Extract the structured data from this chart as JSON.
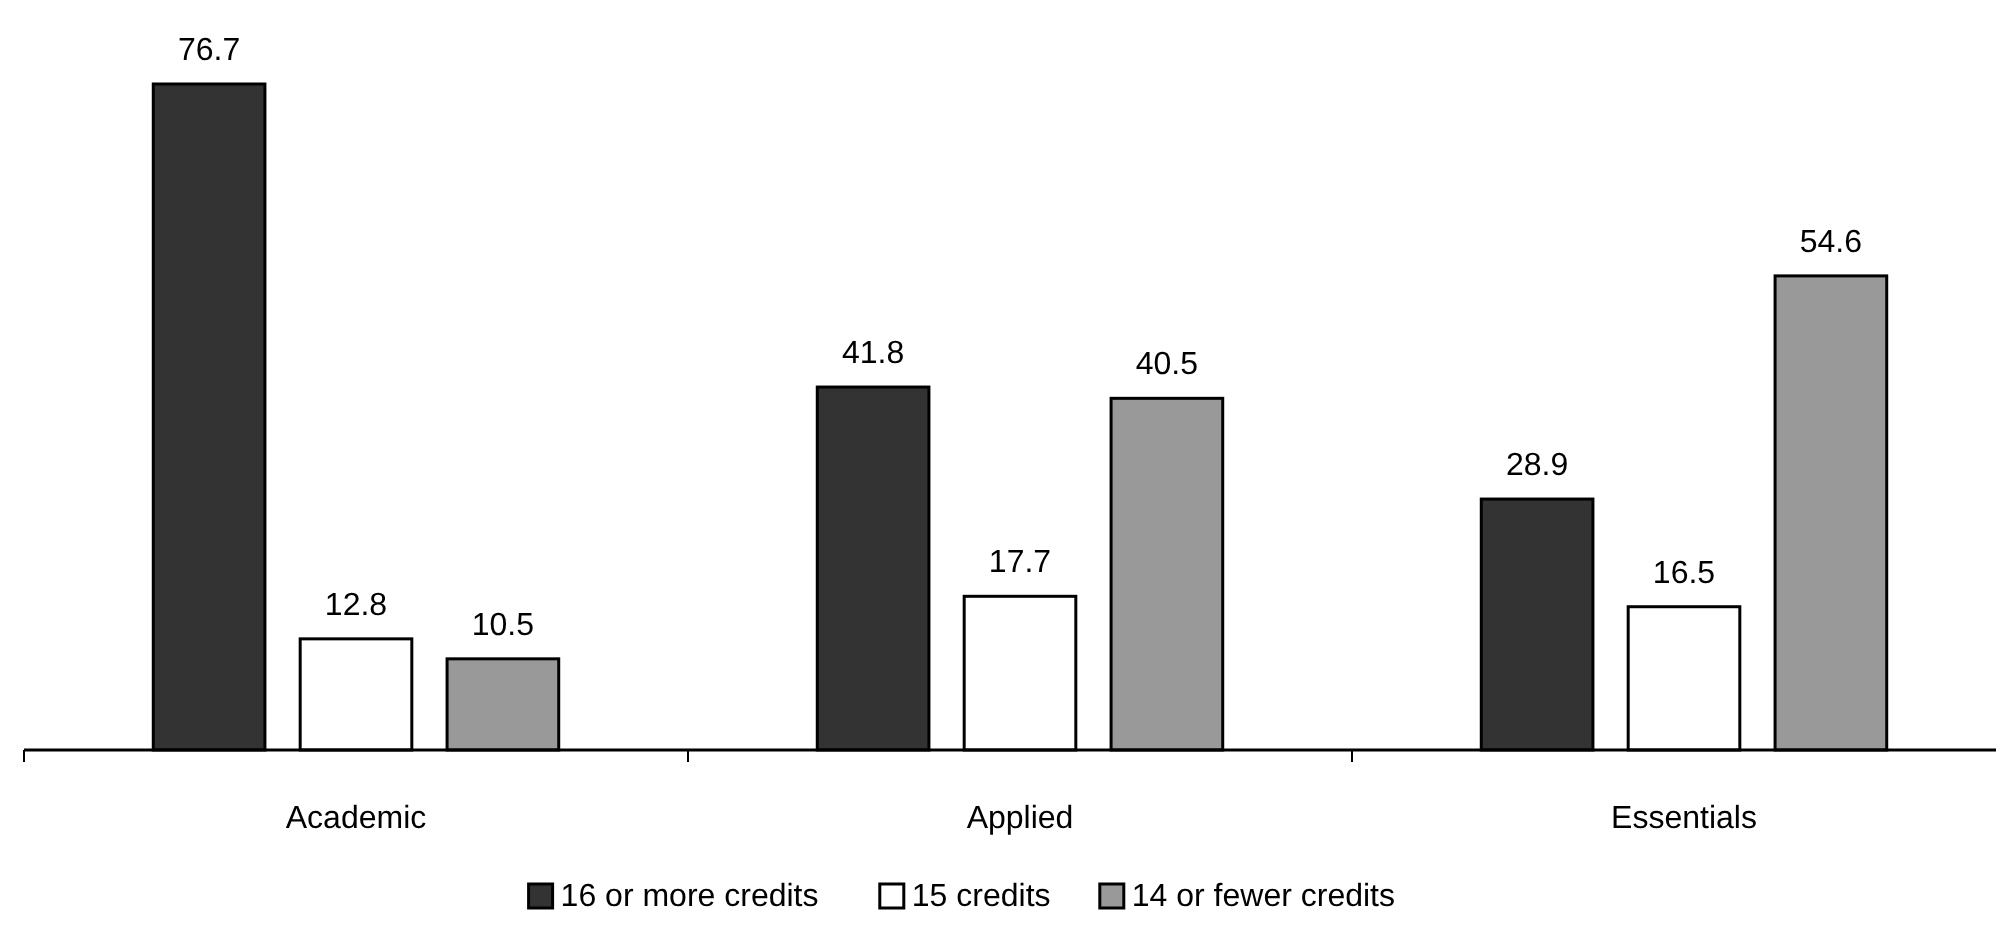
{
  "chart_data": {
    "type": "bar",
    "categories": [
      "Academic",
      "Applied",
      "Essentials"
    ],
    "series": [
      {
        "name": "16 or more credits",
        "color": "#333333",
        "values": [
          76.7,
          41.8,
          28.9
        ]
      },
      {
        "name": "15 credits",
        "color": "#ffffff",
        "values": [
          12.8,
          17.7,
          16.5
        ]
      },
      {
        "name": "14 or fewer credits",
        "color": "#999999",
        "values": [
          10.5,
          40.5,
          54.6
        ]
      }
    ],
    "data_labels": true,
    "legend": "bottom"
  }
}
